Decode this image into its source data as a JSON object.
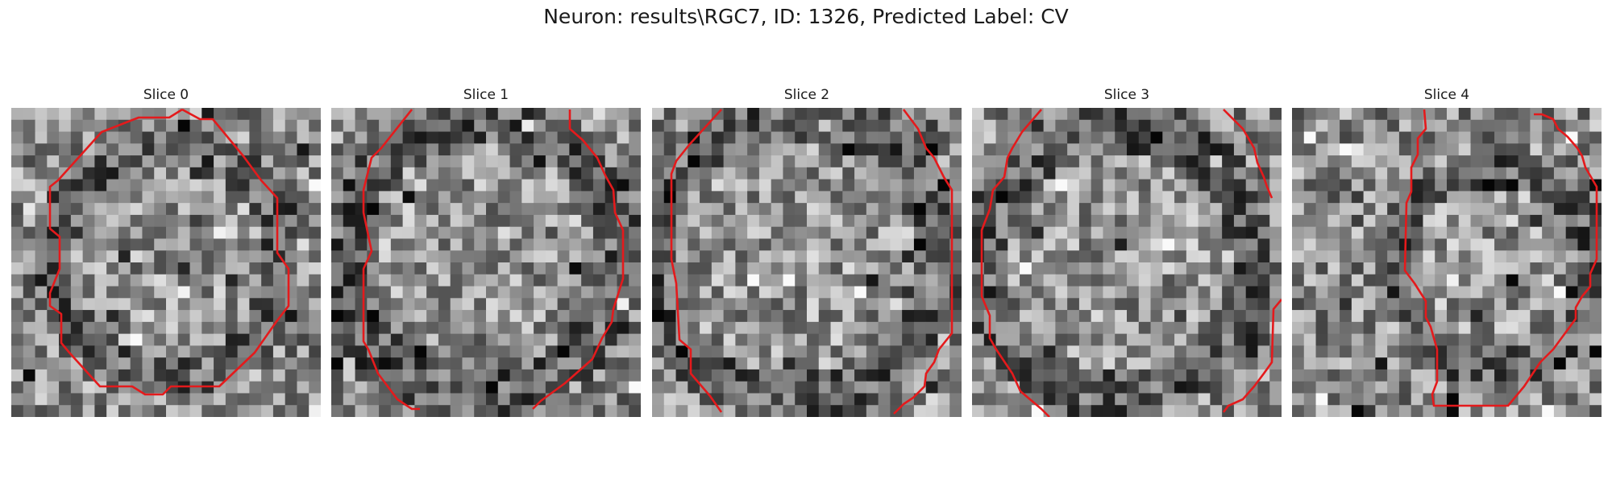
{
  "figure": {
    "title": "Neuron: results\\RGC7, ID: 1326, Predicted Label: CV"
  },
  "panels": [
    {
      "title": "Slice 0",
      "image": "grayscale-microscopy-slice",
      "outline_color": "#e41a1c"
    },
    {
      "title": "Slice 1",
      "image": "grayscale-microscopy-slice",
      "outline_color": "#e41a1c"
    },
    {
      "title": "Slice 2",
      "image": "grayscale-microscopy-slice",
      "outline_color": "#e41a1c"
    },
    {
      "title": "Slice 3",
      "image": "grayscale-microscopy-slice",
      "outline_color": "#e41a1c"
    },
    {
      "title": "Slice 4",
      "image": "grayscale-microscopy-slice",
      "outline_color": "#e41a1c"
    }
  ]
}
